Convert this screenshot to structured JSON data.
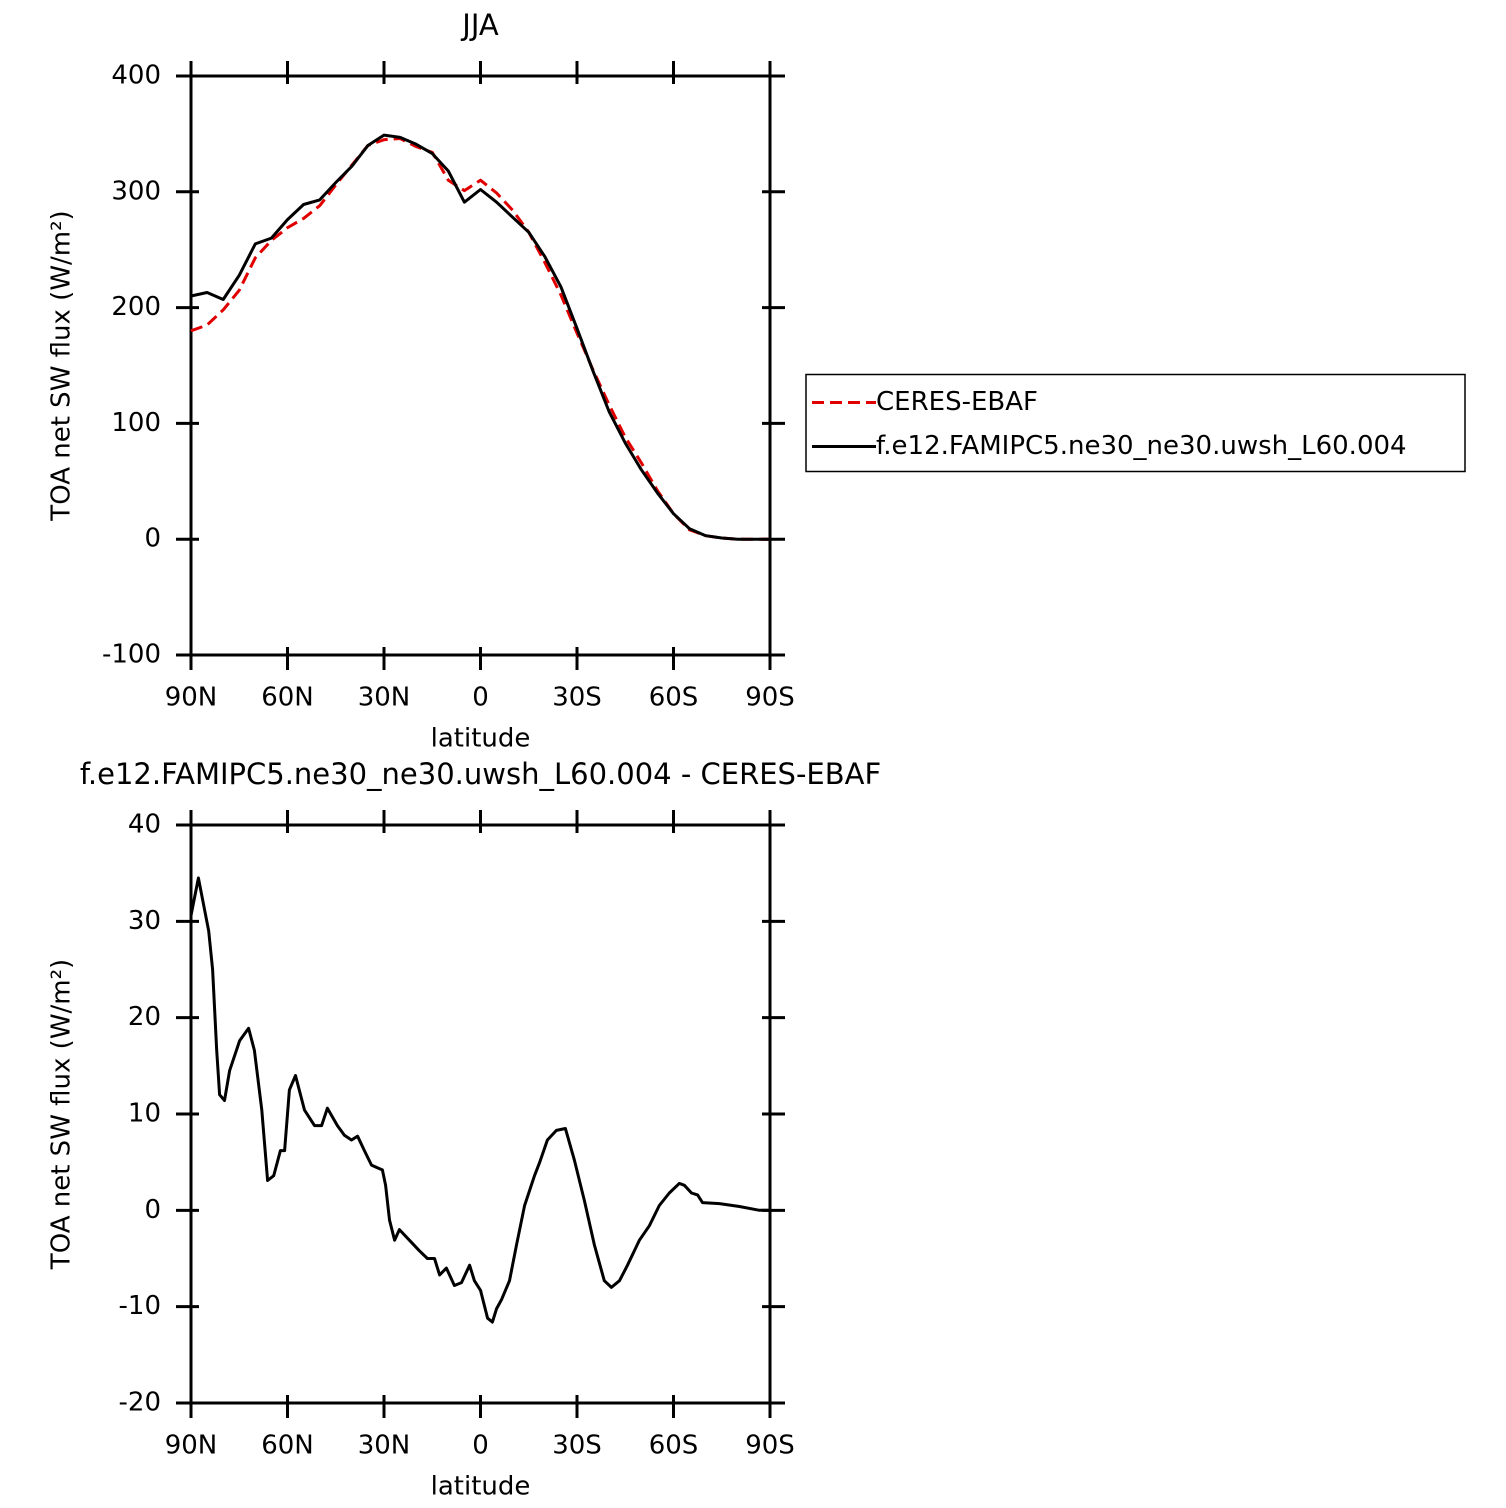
{
  "chart_data": [
    {
      "type": "line",
      "title": "JJA",
      "xlabel": "latitude",
      "ylabel": "TOA net SW flux (W/m²)",
      "x": [
        90,
        85,
        80,
        75,
        70,
        65,
        60,
        55,
        50,
        45,
        40,
        35,
        30,
        25,
        20,
        15,
        10,
        5,
        0,
        -5,
        -10,
        -15,
        -20,
        -25,
        -30,
        -35,
        -40,
        -45,
        -50,
        -55,
        -60,
        -65,
        -70,
        -75,
        -80,
        -85,
        -90
      ],
      "series": [
        {
          "name": "CERES-EBAF",
          "color": "#e00000",
          "linestyle": "dashed",
          "values": [
            180,
            185,
            198,
            215,
            243,
            258,
            269,
            277,
            288,
            306,
            323,
            340,
            345,
            346,
            339,
            334,
            310,
            301,
            310,
            299,
            284,
            265,
            239,
            211,
            178,
            146,
            116,
            88,
            66,
            42,
            22,
            8,
            3,
            1,
            0,
            0,
            0
          ]
        },
        {
          "name": "f.e12.FAMIPC5.ne30_ne30.uwsh_L60.004",
          "color": "#000000",
          "linestyle": "solid",
          "values": [
            210,
            213,
            207,
            228,
            255,
            260,
            276,
            289,
            293,
            308,
            322,
            340,
            349,
            347,
            341,
            333,
            318,
            291,
            302,
            291,
            278,
            265,
            244,
            218,
            182,
            145,
            110,
            83,
            60,
            40,
            22,
            9,
            3,
            1,
            0,
            0,
            0
          ]
        }
      ],
      "xlim": [
        90,
        -90
      ],
      "xticks": [
        {
          "value": 90,
          "label": "90N"
        },
        {
          "value": 60,
          "label": "60N"
        },
        {
          "value": 30,
          "label": "30N"
        },
        0,
        {
          "value": -30,
          "label": "30S"
        },
        {
          "value": -60,
          "label": "60S"
        },
        {
          "value": -90,
          "label": "90S"
        }
      ],
      "ylim": [
        -100,
        400
      ],
      "yticks": [
        -100,
        0,
        100,
        200,
        300,
        400
      ],
      "legend": "right"
    },
    {
      "type": "line",
      "title": "f.e12.FAMIPC5.ne30_ne30.uwsh_L60.004 - CERES-EBAF",
      "xlabel": "latitude",
      "ylabel": "TOA net SW flux (W/m²)",
      "x": [
        90,
        87.7,
        84.5,
        83.3,
        82,
        81.1,
        79.6,
        78,
        74.9,
        72.1,
        70.3,
        68,
        66.2,
        64.3,
        62.2,
        60.9,
        59.4,
        57.5,
        54.7,
        51.6,
        49.4,
        47.6,
        44.5,
        42.3,
        40.1,
        38.2,
        36.1,
        33.9,
        32,
        30.5,
        29.5,
        28.3,
        26.7,
        25.2,
        22.1,
        19,
        16.5,
        14.3,
        12.7,
        10.6,
        8.1,
        5.9,
        3.4,
        1.9,
        0,
        -2.2,
        -3.7,
        -5,
        -6.5,
        -9,
        -11.2,
        -13.7,
        -16.8,
        -18.3,
        -20.8,
        -23.6,
        -26.4,
        -29.2,
        -32.3,
        -35.4,
        -38.5,
        -40.7,
        -43.2,
        -45.7,
        -49.4,
        -52.5,
        -55.6,
        -58.7,
        -61.8,
        -63.4,
        -65.6,
        -67.5,
        -69,
        -74.3,
        -80.5,
        -86.7,
        -90
      ],
      "series": [
        {
          "color": "#000000",
          "linestyle": "solid",
          "values": [
            30.6,
            34.5,
            29,
            25,
            16.6,
            12,
            11.4,
            14.5,
            17.6,
            18.9,
            16.6,
            10.4,
            3.1,
            3.6,
            6.2,
            6.2,
            12.5,
            14,
            10.4,
            8.8,
            8.8,
            10.6,
            8.8,
            7.8,
            7.3,
            7.7,
            6.2,
            4.7,
            4.4,
            4.2,
            2.6,
            -1,
            -3.1,
            -2,
            -3.1,
            -4.2,
            -5,
            -5,
            -6.7,
            -6,
            -7.8,
            -7.5,
            -5.7,
            -7.3,
            -8.3,
            -11.2,
            -11.6,
            -10.2,
            -9.3,
            -7.3,
            -3.6,
            0.5,
            3.6,
            4.9,
            7.3,
            8.3,
            8.5,
            5.2,
            1,
            -3.6,
            -7.3,
            -8,
            -7.3,
            -5.7,
            -3.1,
            -1.6,
            0.5,
            1.8,
            2.8,
            2.6,
            1.8,
            1.6,
            0.8,
            0.7,
            0.4,
            0,
            0
          ]
        }
      ],
      "xlim": [
        90,
        -90
      ],
      "xticks": [
        {
          "value": 90,
          "label": "90N"
        },
        {
          "value": 60,
          "label": "60N"
        },
        {
          "value": 30,
          "label": "30N"
        },
        0,
        {
          "value": -30,
          "label": "30S"
        },
        {
          "value": -60,
          "label": "60S"
        },
        {
          "value": -90,
          "label": "90S"
        }
      ],
      "ylim": [
        -20,
        40
      ],
      "yticks": [
        -20,
        -10,
        0,
        10,
        20,
        30,
        40
      ]
    }
  ]
}
